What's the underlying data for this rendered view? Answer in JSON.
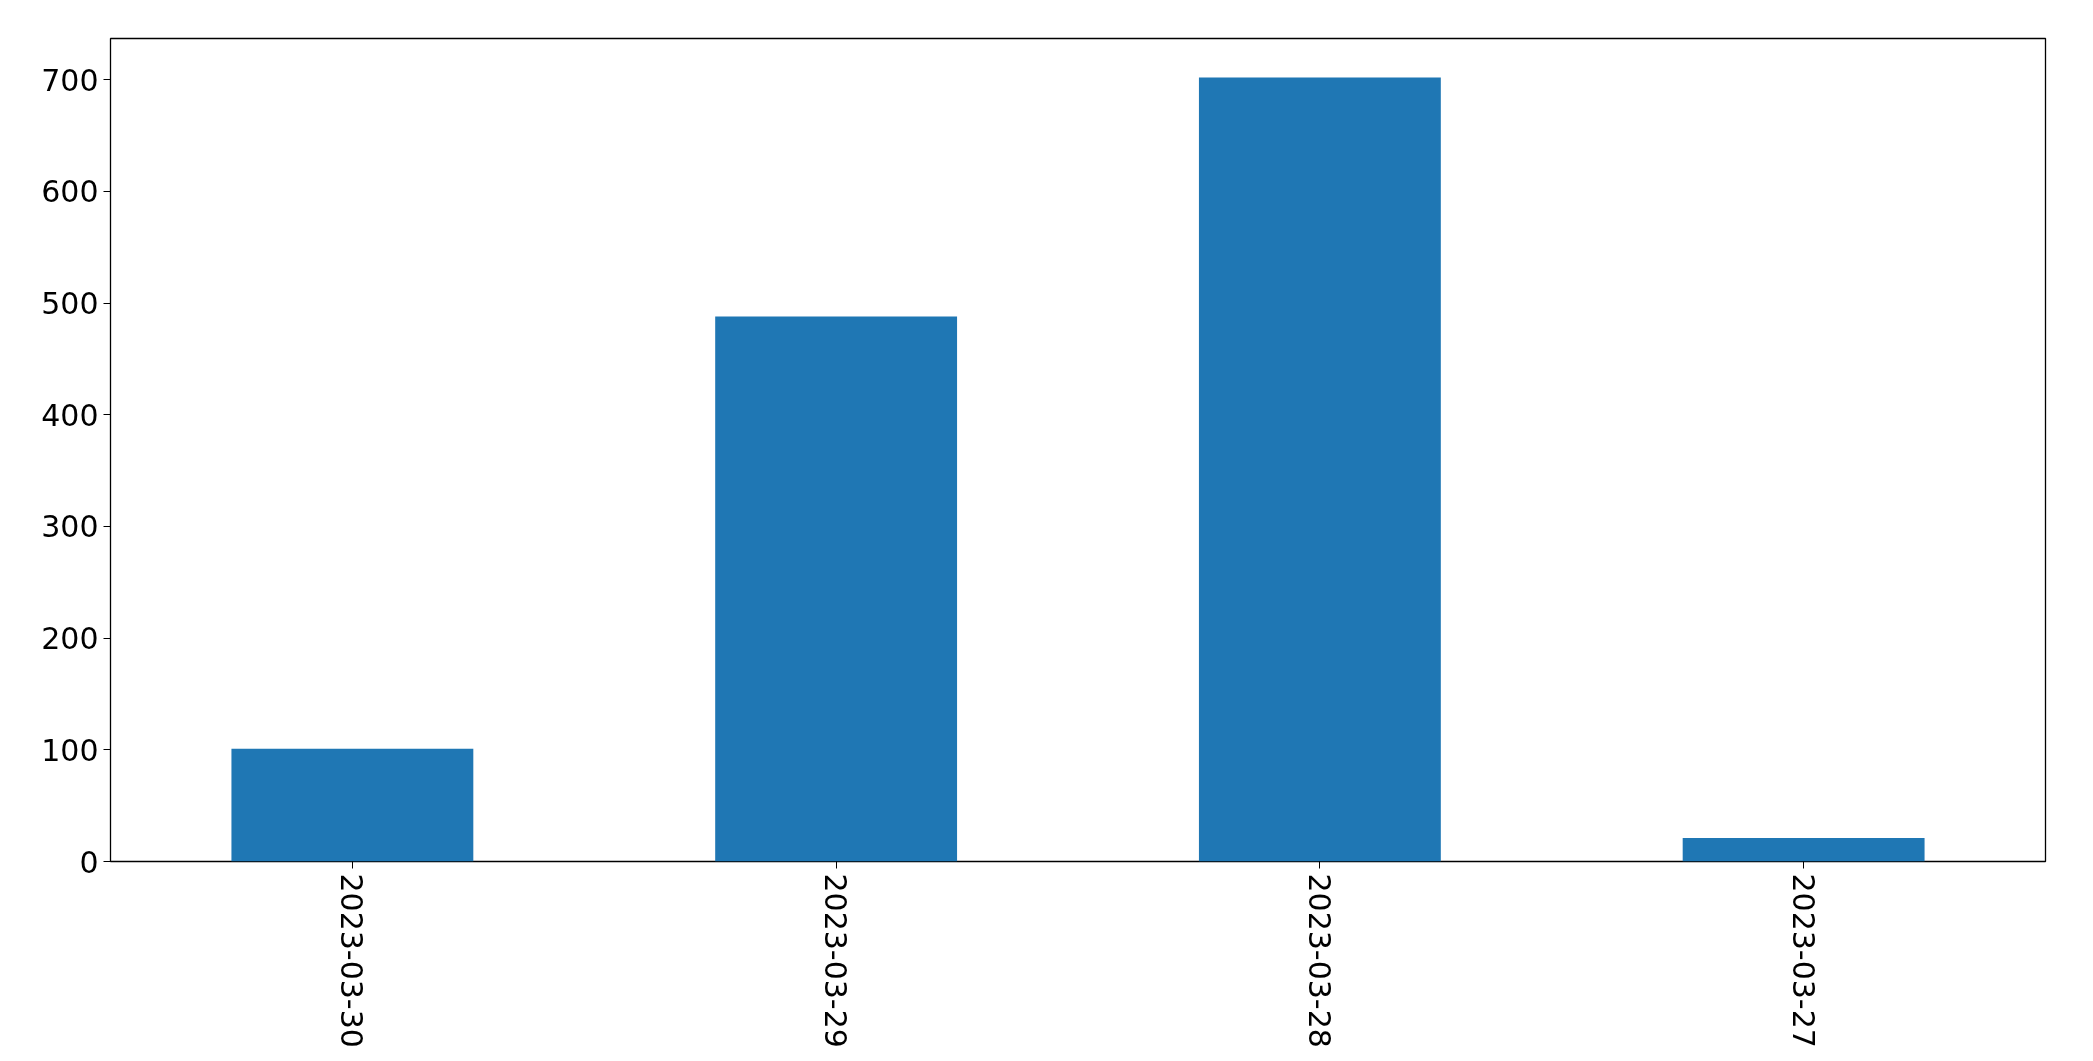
{
  "chart_data": {
    "type": "bar",
    "categories": [
      "2023-03-30",
      "2023-03-29",
      "2023-03-28",
      "2023-03-27"
    ],
    "values": [
      101,
      488,
      702,
      21
    ],
    "color": "#1f77b4",
    "ylim": [
      0,
      737
    ],
    "yticks": [
      0,
      100,
      200,
      300,
      400,
      500,
      600,
      700
    ],
    "grid": false
  }
}
